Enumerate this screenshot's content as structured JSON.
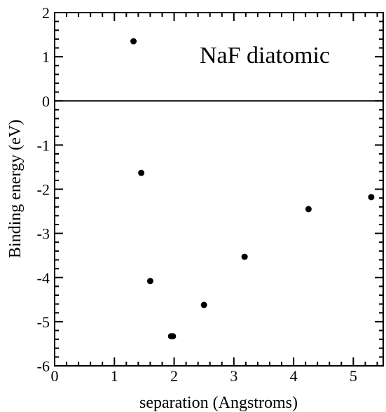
{
  "chart_data": {
    "type": "scatter",
    "title": "NaF diatomic",
    "xlabel": "separation (Angstroms)",
    "ylabel": "Binding energy (eV)",
    "xlim": [
      0,
      5.5
    ],
    "ylim": [
      -6,
      2
    ],
    "xticks": [
      0,
      1,
      2,
      3,
      4,
      5
    ],
    "xtick_labels": [
      "0",
      "1",
      "2",
      "3",
      "4",
      "5"
    ],
    "yticks": [
      2,
      1,
      0,
      -1,
      -2,
      -3,
      -4,
      -5,
      -6
    ],
    "ytick_labels": [
      "2",
      "1",
      "0",
      "-1",
      "-2",
      "-3",
      "-4",
      "-5",
      "-6"
    ],
    "reference_line_y": 0,
    "grid": false,
    "series": [
      {
        "x": [
          1.32,
          1.45,
          1.6,
          1.95,
          1.98,
          2.5,
          3.18,
          4.25,
          5.3
        ],
        "y": [
          1.35,
          -1.63,
          -4.08,
          -5.33,
          -5.33,
          -4.62,
          -3.53,
          -2.45,
          -2.18
        ]
      }
    ],
    "marker_color": "#000000"
  }
}
